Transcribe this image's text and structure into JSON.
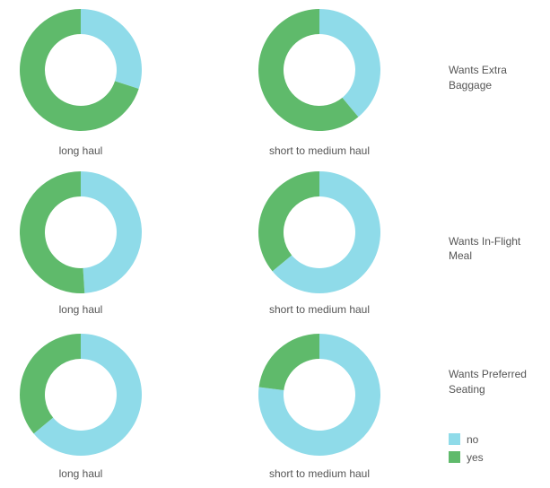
{
  "chart_data": {
    "type": "pie",
    "style": "donut",
    "columns": [
      "long haul",
      "short to medium haul"
    ],
    "rows": [
      "Wants Extra Baggage",
      "Wants In-Flight Meal",
      "Wants Preferred Seating"
    ],
    "series": [
      {
        "name": "no",
        "color": "#8fdbe9"
      },
      {
        "name": "yes",
        "color": "#5fba6b"
      }
    ],
    "cells": [
      {
        "row": "Wants Extra Baggage",
        "column": "long haul",
        "values": {
          "no": 0.3,
          "yes": 0.7
        }
      },
      {
        "row": "Wants Extra Baggage",
        "column": "short to medium haul",
        "values": {
          "no": 0.39,
          "yes": 0.61
        }
      },
      {
        "row": "Wants In-Flight Meal",
        "column": "long haul",
        "values": {
          "no": 0.49,
          "yes": 0.51
        }
      },
      {
        "row": "Wants In-Flight Meal",
        "column": "short to medium haul",
        "values": {
          "no": 0.64,
          "yes": 0.36
        }
      },
      {
        "row": "Wants Preferred Seating",
        "column": "long haul",
        "values": {
          "no": 0.64,
          "yes": 0.36
        }
      },
      {
        "row": "Wants Preferred Seating",
        "column": "short to medium haul",
        "values": {
          "no": 0.77,
          "yes": 0.23
        }
      }
    ],
    "legend": {
      "placement": "bottom-right",
      "entries": [
        "no",
        "yes"
      ]
    }
  }
}
